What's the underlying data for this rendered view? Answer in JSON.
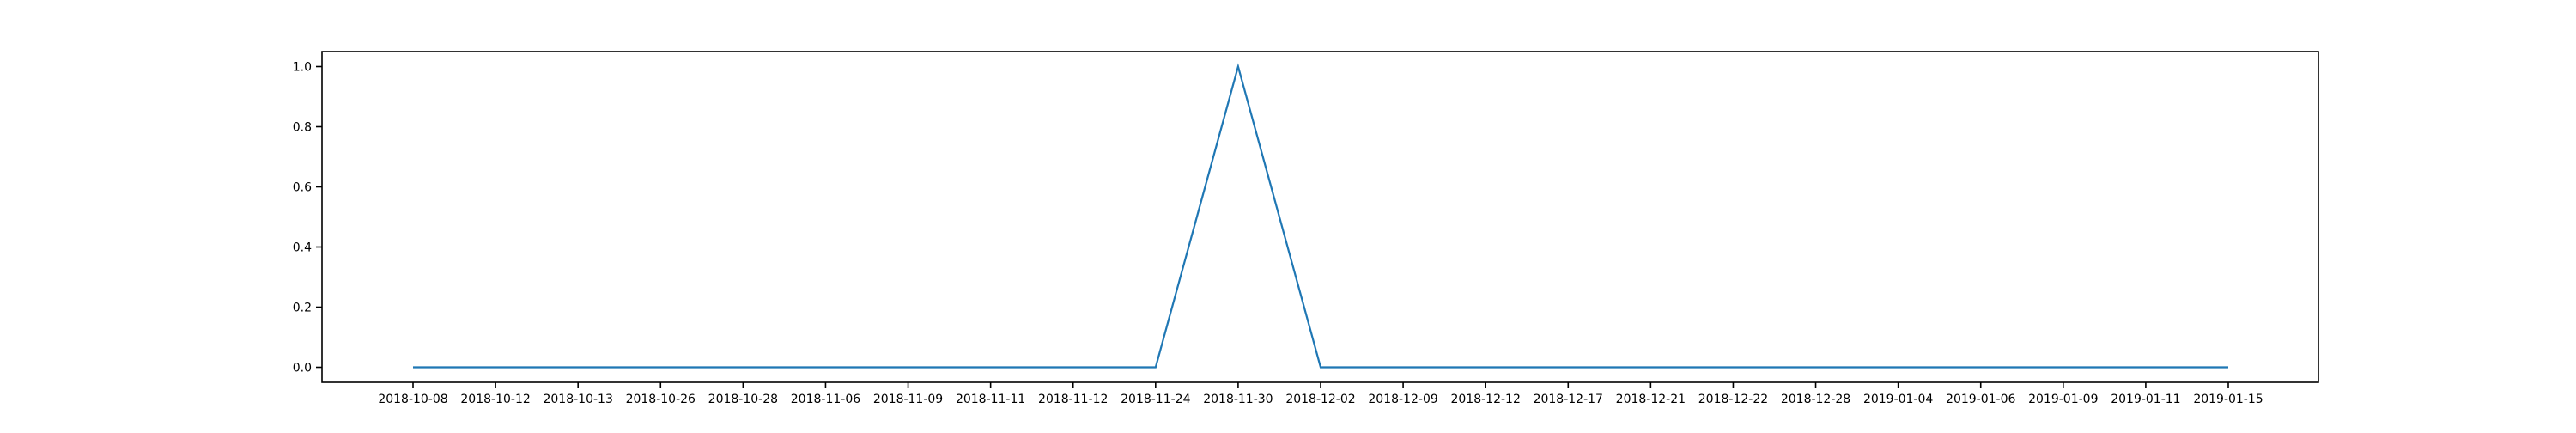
{
  "chart_data": {
    "type": "line",
    "title": "",
    "xlabel": "",
    "ylabel": "",
    "x": [
      "2018-10-08",
      "2018-10-12",
      "2018-10-13",
      "2018-10-26",
      "2018-10-28",
      "2018-11-06",
      "2018-11-09",
      "2018-11-11",
      "2018-11-12",
      "2018-11-24",
      "2018-11-30",
      "2018-12-02",
      "2018-12-09",
      "2018-12-12",
      "2018-12-17",
      "2018-12-21",
      "2018-12-22",
      "2018-12-28",
      "2019-01-04",
      "2019-01-06",
      "2019-01-09",
      "2019-01-11",
      "2019-01-15"
    ],
    "series": [
      {
        "values": [
          0,
          0,
          0,
          0,
          0,
          0,
          0,
          0,
          0,
          0,
          1.0,
          0,
          0,
          0,
          0,
          0,
          0,
          0,
          0,
          0,
          0,
          0,
          0
        ],
        "color": "#1f77b4"
      }
    ],
    "yticks": [
      "0.0",
      "0.2",
      "0.4",
      "0.6",
      "0.8",
      "1.0"
    ],
    "ylim": [
      -0.05,
      1.05
    ],
    "grid": false,
    "legend": "none"
  }
}
